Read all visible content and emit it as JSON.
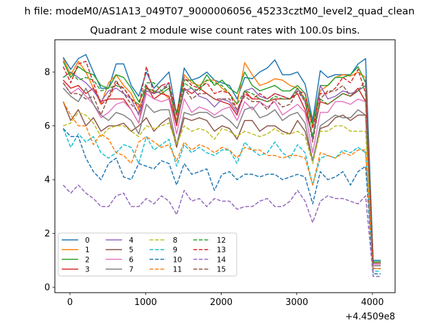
{
  "suptitle": "h file: modeM0/AS1A13_049T07_9000006056_45233cztM0_level2_quad_clean",
  "chart_data": {
    "type": "line",
    "title": "Quadrant 2 module wise count rates with 100.0s bins.",
    "xlabel": "",
    "ylabel": "",
    "x_offset_label": "+4.4509e8",
    "xlim": [
      -200,
      4300
    ],
    "ylim": [
      -0.2,
      9.2
    ],
    "xticks": [
      0,
      1000,
      2000,
      3000,
      4000
    ],
    "xtick_labels": [
      "0",
      "1000",
      "2000",
      "3000",
      "4000"
    ],
    "yticks": [
      0,
      2,
      4,
      6,
      8
    ],
    "ytick_labels": [
      "0",
      "2",
      "4",
      "6",
      "8"
    ],
    "grid": false,
    "legend": {
      "position": "lower-left",
      "ncol": 4
    },
    "x": [
      -90,
      10,
      110,
      210,
      310,
      410,
      510,
      610,
      710,
      810,
      910,
      1010,
      1110,
      1210,
      1310,
      1410,
      1510,
      1610,
      1710,
      1810,
      1910,
      2010,
      2110,
      2210,
      2310,
      2410,
      2510,
      2610,
      2710,
      2810,
      2910,
      3010,
      3110,
      3210,
      3310,
      3410,
      3510,
      3610,
      3710,
      3810,
      3910,
      4010,
      4110
    ],
    "series": [
      {
        "name": "0",
        "color": "#1f77b4",
        "dash": "solid",
        "values": [
          8.55,
          8.1,
          8.5,
          8.65,
          8.0,
          7.4,
          7.4,
          8.3,
          8.3,
          7.5,
          7.1,
          8.0,
          7.4,
          7.7,
          8.0,
          6.4,
          8.15,
          7.7,
          7.8,
          8.0,
          7.7,
          7.6,
          7.5,
          7.0,
          7.8,
          7.75,
          8.0,
          8.15,
          8.45,
          7.9,
          7.9,
          8.0,
          7.55,
          6.2,
          8.05,
          7.8,
          7.9,
          7.9,
          7.9,
          8.3,
          8.5,
          1.0,
          1.0
        ]
      },
      {
        "name": "1",
        "color": "#ff7f0e",
        "dash": "solid",
        "values": [
          8.5,
          7.9,
          8.4,
          8.0,
          7.4,
          6.8,
          7.6,
          7.9,
          7.5,
          7.2,
          6.6,
          7.4,
          7.2,
          7.3,
          7.0,
          6.2,
          7.9,
          7.6,
          7.5,
          7.7,
          7.7,
          7.4,
          7.2,
          6.8,
          8.35,
          7.9,
          7.5,
          7.6,
          7.75,
          7.7,
          7.5,
          7.4,
          7.0,
          6.0,
          7.3,
          7.5,
          7.8,
          7.9,
          7.85,
          8.0,
          7.8,
          0.9,
          0.9
        ]
      },
      {
        "name": "2",
        "color": "#2ca02c",
        "dash": "solid",
        "values": [
          8.4,
          7.8,
          8.2,
          8.0,
          7.9,
          7.5,
          7.4,
          7.9,
          7.8,
          7.4,
          6.9,
          7.4,
          7.3,
          7.2,
          7.4,
          6.5,
          7.7,
          7.7,
          7.4,
          7.9,
          7.5,
          7.7,
          7.4,
          7.2,
          8.0,
          7.5,
          7.3,
          7.4,
          7.5,
          7.3,
          7.3,
          7.5,
          7.2,
          6.1,
          7.5,
          7.5,
          7.8,
          7.8,
          7.9,
          8.2,
          7.6,
          0.95,
          0.95
        ]
      },
      {
        "name": "3",
        "color": "#d62728",
        "dash": "solid",
        "values": [
          7.7,
          7.4,
          7.5,
          7.2,
          7.4,
          6.9,
          7.0,
          7.0,
          7.0,
          6.6,
          6.1,
          7.5,
          7.0,
          7.2,
          7.1,
          6.0,
          7.4,
          7.2,
          7.4,
          7.2,
          7.0,
          6.9,
          6.8,
          6.4,
          7.3,
          7.0,
          7.0,
          6.9,
          7.0,
          7.0,
          7.0,
          7.2,
          6.6,
          5.6,
          6.9,
          6.8,
          7.0,
          7.2,
          7.1,
          7.4,
          6.9,
          0.9,
          0.9
        ]
      },
      {
        "name": "4",
        "color": "#9467bd",
        "dash": "solid",
        "values": [
          7.8,
          8.0,
          7.8,
          7.6,
          7.3,
          6.9,
          7.3,
          7.4,
          7.2,
          7.0,
          6.4,
          7.3,
          7.2,
          7.3,
          7.6,
          6.1,
          7.3,
          7.4,
          7.1,
          7.0,
          6.7,
          7.0,
          6.9,
          6.5,
          7.3,
          7.4,
          7.1,
          7.0,
          7.2,
          7.1,
          7.0,
          7.4,
          6.9,
          5.5,
          7.5,
          7.0,
          7.1,
          7.3,
          7.2,
          7.3,
          7.5,
          0.9,
          0.9
        ]
      },
      {
        "name": "5",
        "color": "#8c564b",
        "dash": "solid",
        "values": [
          6.9,
          6.2,
          6.6,
          6.0,
          6.3,
          5.8,
          6.0,
          6.0,
          6.1,
          5.8,
          6.0,
          6.3,
          5.8,
          6.1,
          6.3,
          5.2,
          6.3,
          6.2,
          6.3,
          6.2,
          5.8,
          6.0,
          5.9,
          5.5,
          6.2,
          6.2,
          5.8,
          6.0,
          6.0,
          5.8,
          5.7,
          6.2,
          5.8,
          4.7,
          5.9,
          6.0,
          6.3,
          6.4,
          6.2,
          6.4,
          6.4,
          0.7,
          0.7
        ]
      },
      {
        "name": "6",
        "color": "#e377c2",
        "dash": "solid",
        "values": [
          7.6,
          7.2,
          7.4,
          7.1,
          6.8,
          6.3,
          6.5,
          6.8,
          6.9,
          6.6,
          6.1,
          7.2,
          7.0,
          6.9,
          7.0,
          5.7,
          7.0,
          6.5,
          6.7,
          6.6,
          6.4,
          6.6,
          6.7,
          6.2,
          6.9,
          6.6,
          6.9,
          6.7,
          6.9,
          6.4,
          6.6,
          6.8,
          6.5,
          5.0,
          6.5,
          6.5,
          6.9,
          6.9,
          6.8,
          7.0,
          6.9,
          0.85,
          0.85
        ]
      },
      {
        "name": "7",
        "color": "#7f7f7f",
        "dash": "solid",
        "values": [
          7.4,
          7.1,
          6.9,
          7.4,
          6.8,
          6.4,
          6.2,
          6.5,
          6.4,
          6.2,
          5.7,
          6.8,
          6.5,
          6.6,
          6.6,
          5.3,
          6.5,
          6.4,
          6.5,
          6.5,
          6.3,
          6.4,
          6.2,
          5.9,
          6.6,
          6.7,
          6.3,
          6.4,
          6.6,
          6.2,
          6.4,
          6.5,
          6.1,
          4.7,
          6.0,
          6.2,
          6.4,
          6.3,
          6.3,
          6.6,
          6.4,
          0.8,
          0.8
        ]
      },
      {
        "name": "8",
        "color": "#bcbd22",
        "dash": "dashed",
        "values": [
          6.0,
          6.1,
          6.5,
          6.4,
          6.1,
          5.6,
          5.9,
          6.0,
          6.0,
          5.8,
          5.6,
          6.0,
          5.9,
          6.0,
          6.1,
          5.3,
          6.0,
          5.8,
          5.9,
          5.8,
          5.5,
          5.9,
          5.8,
          5.6,
          5.8,
          5.7,
          5.6,
          5.7,
          5.9,
          5.7,
          5.7,
          5.8,
          5.6,
          4.6,
          5.8,
          5.8,
          6.0,
          6.0,
          5.8,
          5.8,
          5.8,
          0.7,
          0.7
        ]
      },
      {
        "name": "9",
        "color": "#17becf",
        "dash": "dashed",
        "values": [
          5.9,
          5.2,
          5.7,
          5.4,
          5.6,
          5.0,
          4.8,
          5.0,
          5.3,
          5.2,
          4.6,
          5.6,
          5.1,
          5.3,
          5.5,
          4.5,
          5.3,
          5.0,
          5.2,
          5.0,
          4.9,
          5.1,
          5.1,
          4.6,
          5.4,
          5.1,
          4.9,
          5.0,
          5.4,
          5.0,
          4.8,
          5.3,
          5.0,
          3.8,
          4.8,
          4.9,
          4.8,
          5.1,
          5.0,
          5.2,
          5.0,
          0.6,
          0.6
        ]
      },
      {
        "name": "10",
        "color": "#1f77b4",
        "dash": "dashed",
        "values": [
          5.9,
          5.6,
          5.6,
          4.8,
          4.3,
          4.0,
          4.6,
          4.8,
          4.1,
          4.0,
          4.6,
          4.5,
          4.4,
          4.7,
          4.6,
          3.8,
          4.6,
          4.2,
          4.3,
          4.4,
          3.6,
          4.2,
          4.3,
          4.0,
          4.2,
          4.2,
          4.1,
          4.2,
          4.2,
          4.0,
          4.1,
          4.2,
          4.1,
          3.1,
          4.3,
          4.0,
          4.1,
          4.3,
          3.8,
          4.3,
          4.5,
          0.5,
          0.5
        ]
      },
      {
        "name": "11",
        "color": "#ff7f0e",
        "dash": "dashed",
        "values": [
          6.9,
          6.4,
          6.0,
          6.0,
          5.3,
          5.7,
          5.5,
          5.0,
          4.9,
          4.6,
          5.4,
          5.6,
          5.4,
          5.2,
          5.3,
          4.7,
          5.4,
          5.1,
          5.3,
          5.2,
          5.0,
          5.2,
          5.1,
          4.8,
          5.2,
          5.1,
          5.1,
          4.9,
          4.9,
          4.8,
          4.9,
          4.9,
          4.8,
          3.8,
          5.0,
          4.9,
          4.8,
          5.0,
          4.9,
          5.1,
          5.1,
          0.7,
          0.7
        ]
      },
      {
        "name": "12",
        "color": "#2ca02c",
        "dash": "dashed",
        "values": [
          7.8,
          8.0,
          7.7,
          7.8,
          7.7,
          7.3,
          7.4,
          7.5,
          7.4,
          7.0,
          6.8,
          7.6,
          7.6,
          7.3,
          7.5,
          6.1,
          7.6,
          7.4,
          7.3,
          7.7,
          7.6,
          7.5,
          7.2,
          6.8,
          7.3,
          7.2,
          7.0,
          6.9,
          7.1,
          7.0,
          7.0,
          7.4,
          7.0,
          5.6,
          7.0,
          6.8,
          7.0,
          7.2,
          7.1,
          7.3,
          7.5,
          0.9,
          0.9
        ]
      },
      {
        "name": "13",
        "color": "#d62728",
        "dash": "dashed",
        "values": [
          8.2,
          7.6,
          8.3,
          8.4,
          7.6,
          6.8,
          7.0,
          7.6,
          7.4,
          7.0,
          6.7,
          8.2,
          7.2,
          7.5,
          7.6,
          6.4,
          7.8,
          7.5,
          7.4,
          7.6,
          7.2,
          7.3,
          7.2,
          6.6,
          7.2,
          7.0,
          7.2,
          7.0,
          7.2,
          7.1,
          7.0,
          7.3,
          7.2,
          5.9,
          7.2,
          7.2,
          7.4,
          7.8,
          7.6,
          8.1,
          7.2,
          0.9,
          0.9
        ]
      },
      {
        "name": "14",
        "color": "#9467bd",
        "dash": "dashed",
        "values": [
          3.8,
          3.5,
          3.8,
          3.5,
          3.3,
          3.0,
          3.0,
          3.4,
          3.5,
          3.0,
          3.0,
          3.3,
          3.1,
          3.4,
          3.2,
          2.7,
          3.6,
          3.2,
          3.3,
          3.0,
          3.3,
          3.2,
          3.2,
          2.9,
          3.0,
          3.0,
          3.2,
          3.3,
          3.0,
          3.0,
          3.2,
          3.6,
          3.2,
          2.4,
          3.2,
          3.4,
          3.3,
          3.3,
          3.2,
          3.1,
          3.4,
          0.4,
          0.4
        ]
      },
      {
        "name": "15",
        "color": "#8c564b",
        "dash": "dashed",
        "values": [
          7.6,
          7.2,
          7.2,
          7.0,
          7.1,
          6.4,
          7.1,
          7.7,
          7.2,
          6.8,
          6.5,
          7.4,
          7.2,
          7.5,
          7.4,
          6.1,
          7.4,
          7.0,
          7.2,
          7.2,
          7.0,
          7.0,
          7.0,
          6.6,
          7.1,
          6.9,
          6.9,
          6.6,
          7.0,
          6.7,
          6.8,
          7.3,
          6.9,
          5.4,
          7.0,
          7.3,
          7.3,
          7.5,
          7.1,
          7.3,
          7.7,
          0.9,
          0.9
        ]
      }
    ]
  }
}
